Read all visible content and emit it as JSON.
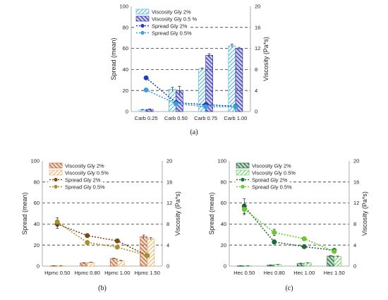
{
  "chart_data": [
    {
      "type": "bar",
      "panel_label": "(a)",
      "categories": [
        "Carb 0.25",
        "Carb 0.50",
        "Carb 0.75",
        "Carb 1.00"
      ],
      "ylabel": "Spread (mean)",
      "y2label": "Viscosity (Pa*s)",
      "ylim": [
        0,
        100
      ],
      "y2lim": [
        0,
        20
      ],
      "yticks": [
        0,
        20,
        40,
        60,
        80,
        100
      ],
      "y2ticks": [
        0,
        4,
        8,
        12,
        16,
        20
      ],
      "grid": "dashed horizontal",
      "legend_position": "top-left",
      "series": [
        {
          "name": "Viscosity Gly 2%",
          "kind": "bar",
          "axis": "right",
          "values": [
            0.3,
            4.2,
            8.1,
            12.5
          ],
          "errors": [
            0.1,
            0.4,
            0.2,
            0.3
          ],
          "color": "#4db8e0",
          "pattern": "hatch-light"
        },
        {
          "name": "Viscosity Gly 0.5 %",
          "kind": "bar",
          "axis": "right",
          "values": [
            0.4,
            4.0,
            10.7,
            12.0
          ],
          "errors": [
            0.1,
            0.8,
            0.3,
            0.2
          ],
          "color": "#3a3ab0",
          "pattern": "hatch-dark"
        },
        {
          "name": "Spread Gly 2%",
          "kind": "line",
          "axis": "left",
          "values": [
            32,
            8.5,
            6.5,
            5.0
          ],
          "color": "#1f3fbf"
        },
        {
          "name": "Spread Gly 0.5%",
          "kind": "line",
          "axis": "left",
          "values": [
            20.5,
            7.5,
            4.5,
            4.5
          ],
          "color": "#3aa0dc"
        }
      ]
    },
    {
      "type": "bar",
      "panel_label": "(b)",
      "categories": [
        "Hpmc 0.50",
        "Hpmc 0.80",
        "Hpmc 1.00",
        "Hpmc 1.50"
      ],
      "ylabel": "Spread (mean)",
      "y2label": "Viscosity (Pa*s)",
      "ylim": [
        0,
        100
      ],
      "y2lim": [
        0,
        20
      ],
      "yticks": [
        0,
        20,
        40,
        60,
        80,
        100
      ],
      "y2ticks": [
        0,
        4,
        8,
        12,
        16,
        20
      ],
      "grid": "dashed horizontal",
      "legend_position": "top-left",
      "series": [
        {
          "name": "Viscosity Gly 2%",
          "kind": "bar",
          "axis": "right",
          "values": [
            0.05,
            0.6,
            1.4,
            5.6
          ],
          "errors": [
            0.02,
            0.05,
            0.1,
            0.3
          ],
          "color": "#c06a3a",
          "pattern": "hatch-dark"
        },
        {
          "name": "Viscosity Gly 0.5%",
          "kind": "bar",
          "axis": "right",
          "values": [
            0.05,
            0.7,
            1.0,
            5.2
          ],
          "errors": [
            0.02,
            0.05,
            0.1,
            0.2
          ],
          "color": "#e8b26a",
          "pattern": "hatch-light"
        },
        {
          "name": "Spread Gly 2%",
          "kind": "line",
          "axis": "left",
          "values": [
            40,
            29,
            24,
            10
          ],
          "errors": [
            4,
            1.5,
            1.5,
            1.5
          ],
          "color": "#7a4a1a"
        },
        {
          "name": "Spread Gly 0.5%",
          "kind": "line",
          "axis": "left",
          "values": [
            42,
            22.5,
            18,
            10
          ],
          "errors": [
            4,
            1.5,
            1.5,
            1.5
          ],
          "color": "#a8902a"
        }
      ]
    },
    {
      "type": "bar",
      "panel_label": "(c)",
      "categories": [
        "Hec 0.50",
        "Hec 0.80",
        "Hec 1.00",
        "Hec 1.50"
      ],
      "ylabel": "Spread (mean)",
      "y2label": "Viscosity (Pa*s)",
      "ylim": [
        0,
        100
      ],
      "y2lim": [
        0,
        20
      ],
      "yticks": [
        0,
        20,
        40,
        60,
        80,
        100
      ],
      "y2ticks": [
        0,
        4,
        8,
        12,
        16,
        20
      ],
      "grid": "dashed horizontal",
      "legend_position": "top-left",
      "series": [
        {
          "name": "Viscosity Gly 2%",
          "kind": "bar",
          "axis": "right",
          "values": [
            0.05,
            0.2,
            0.5,
            1.9
          ],
          "errors": [
            0.02,
            0.03,
            0.05,
            0.1
          ],
          "color": "#1f6a3a",
          "pattern": "hatch-dark"
        },
        {
          "name": "Viscosity Gly 0.5%",
          "kind": "bar",
          "axis": "right",
          "values": [
            0.05,
            0.3,
            0.6,
            1.8
          ],
          "errors": [
            0.02,
            0.03,
            0.05,
            0.1
          ],
          "color": "#6ad06a",
          "pattern": "hatch-light"
        },
        {
          "name": "Spread Gly 2%",
          "kind": "line",
          "axis": "left",
          "values": [
            57,
            23,
            18.5,
            15
          ],
          "errors": [
            7,
            2,
            1.5,
            1.5
          ],
          "color": "#1f6a3a"
        },
        {
          "name": "Spread Gly 0.5%",
          "kind": "line",
          "axis": "left",
          "values": [
            54,
            32,
            26,
            14
          ],
          "errors": [
            5,
            3,
            1.5,
            1.5
          ],
          "color": "#6ac82a"
        }
      ]
    }
  ]
}
